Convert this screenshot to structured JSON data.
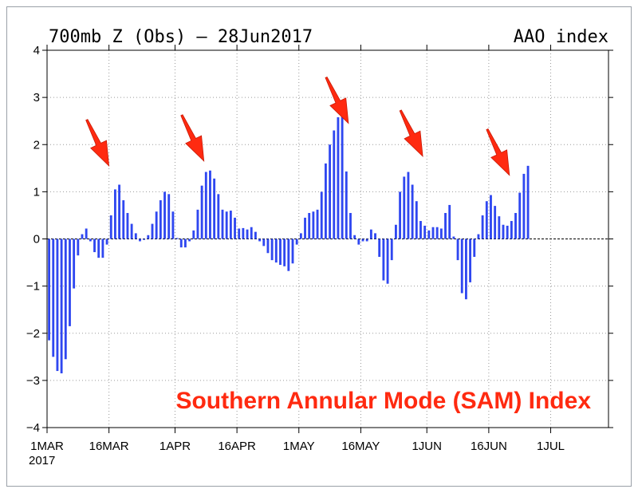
{
  "chart_data": {
    "type": "bar",
    "title": "700mb Z (Obs) – 28Jun2017",
    "title_right": "AAO index",
    "annotation": "Southern Annular Mode (SAM) Index",
    "start_date": "1MAR",
    "year_label": "2017",
    "xtick_labels": [
      "1MAR",
      "16MAR",
      "1APR",
      "16APR",
      "1MAY",
      "16MAY",
      "1JUN",
      "16JUN",
      "1JUL"
    ],
    "xtick_dates": [
      "2017-03-01",
      "2017-03-16",
      "2017-04-01",
      "2017-04-16",
      "2017-05-01",
      "2017-05-16",
      "2017-06-01",
      "2017-06-16",
      "2017-07-01"
    ],
    "x_range": [
      "2017-03-01",
      "2017-07-15"
    ],
    "ylim": [
      -4,
      4
    ],
    "yticks": [
      -4,
      -3,
      -2,
      -1,
      0,
      1,
      2,
      3,
      4
    ],
    "grid": true,
    "bar_color": "#2f47f0",
    "arrow_color": "#ff2a10",
    "values": [
      -2.15,
      -2.5,
      -2.8,
      -2.85,
      -2.55,
      -1.85,
      -1.05,
      -0.35,
      0.1,
      0.22,
      -0.05,
      -0.28,
      -0.4,
      -0.4,
      -0.12,
      0.5,
      1.05,
      1.15,
      0.82,
      0.55,
      0.32,
      0.12,
      -0.05,
      -0.02,
      0.08,
      0.32,
      0.58,
      0.82,
      1.0,
      0.95,
      0.58,
      0.02,
      -0.18,
      -0.18,
      -0.05,
      0.18,
      0.62,
      1.13,
      1.42,
      1.45,
      1.28,
      0.95,
      0.62,
      0.58,
      0.6,
      0.45,
      0.22,
      0.23,
      0.2,
      0.25,
      0.15,
      -0.05,
      -0.15,
      -0.3,
      -0.45,
      -0.5,
      -0.55,
      -0.58,
      -0.68,
      -0.52,
      -0.12,
      0.12,
      0.45,
      0.55,
      0.58,
      0.62,
      1.0,
      1.6,
      2.0,
      2.3,
      2.58,
      2.8,
      1.43,
      0.55,
      0.08,
      -0.12,
      -0.05,
      -0.05,
      0.2,
      0.12,
      -0.38,
      -0.88,
      -0.95,
      -0.45,
      0.3,
      1.0,
      1.32,
      1.42,
      1.15,
      0.8,
      0.38,
      0.28,
      0.18,
      0.25,
      0.25,
      0.22,
      0.55,
      0.72,
      0.05,
      -0.45,
      -1.15,
      -1.28,
      -0.92,
      -0.38,
      0.1,
      0.5,
      0.8,
      0.93,
      0.7,
      0.48,
      0.3,
      0.28,
      0.38,
      0.55,
      0.98,
      1.38,
      1.55
    ],
    "arrow_tips": [
      [
        "2017-03-16",
        1.55
      ],
      [
        "2017-04-08",
        1.65
      ],
      [
        "2017-05-13",
        2.45
      ],
      [
        "2017-05-31",
        1.75
      ],
      [
        "2017-06-21",
        1.35
      ]
    ]
  }
}
